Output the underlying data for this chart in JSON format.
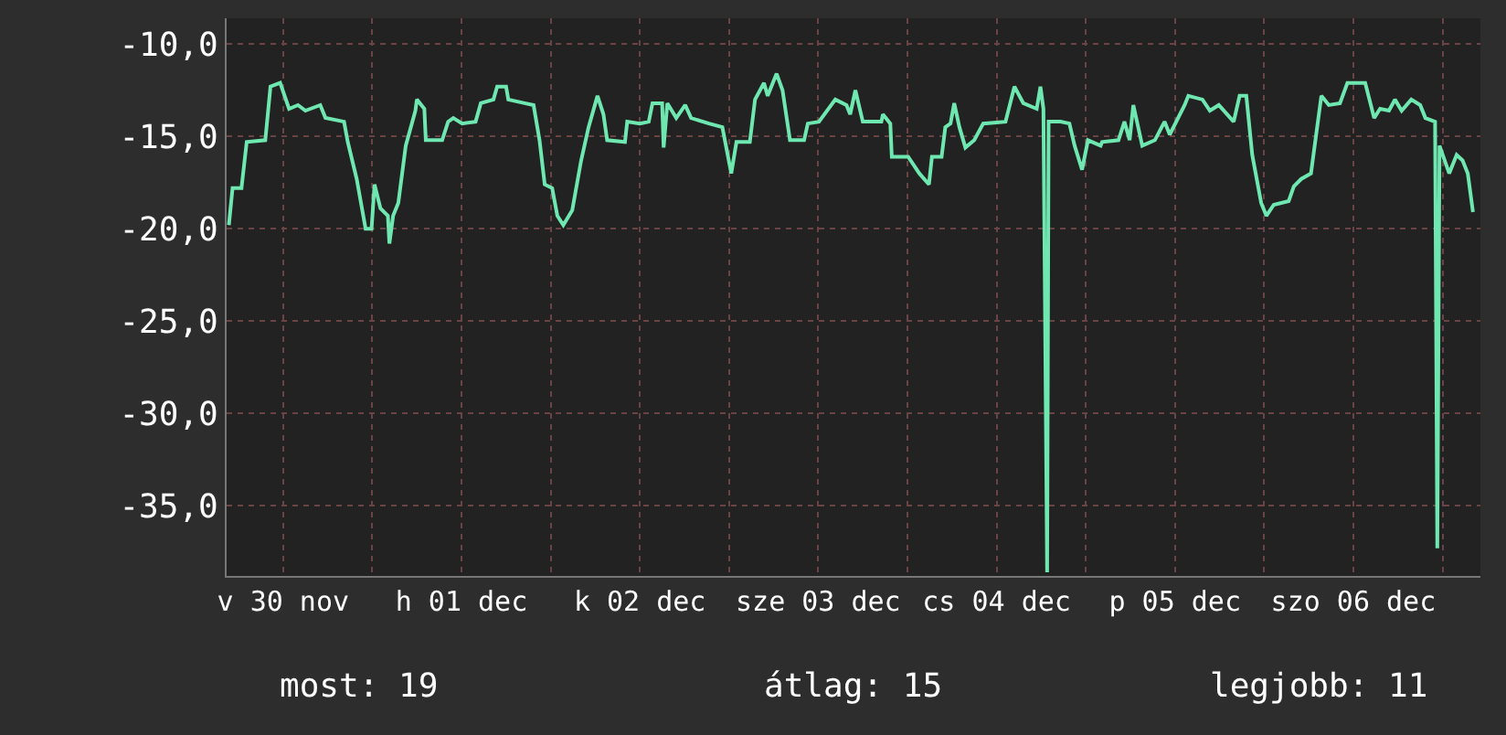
{
  "chart_data": {
    "type": "line",
    "x": [
      "--11-30T04:42",
      "--11-30T05:12",
      "--11-30T06:24",
      "--11-30T07:06",
      "--11-30T09:36",
      "--11-30T10:18",
      "--11-30T11:36",
      "--11-30T12:48",
      "--11-30T14:00",
      "--11-30T15:00",
      "--11-30T17:00",
      "--11-30T17:42",
      "--11-30T20:12",
      "--11-30T20:42",
      "--11-30T21:54",
      "--11-30T23:06",
      "--11-30T23:54",
      "--12-01T00:18",
      "--12-01T01:06",
      "--12-01T02:06",
      "--12-01T02:18",
      "--12-01T02:48",
      "--12-01T03:30",
      "--12-01T04:30",
      "--12-01T05:48",
      "--12-01T06:00",
      "--12-01T07:00",
      "--12-01T07:12",
      "--12-01T09:24",
      "--12-01T10:12",
      "--12-01T10:54",
      "--12-01T12:06",
      "--12-01T13:54",
      "--12-01T14:36",
      "--12-01T16:18",
      "--12-01T16:48",
      "--12-01T18:00",
      "--12-01T18:18",
      "--12-01T20:30",
      "--12-01T21:42",
      "--12-01T22:30",
      "--12-01T23:12",
      "--12-02T00:12",
      "--12-02T00:54",
      "--12-02T01:42",
      "--12-02T02:54",
      "--12-02T04:06",
      "--12-02T05:06",
      "--12-02T06:18",
      "--12-02T07:06",
      "--12-02T07:36",
      "--12-02T10:00",
      "--12-02T10:18",
      "--12-02T12:00",
      "--12-02T13:12",
      "--12-02T13:42",
      "--12-02T15:00",
      "--12-02T15:12",
      "--12-02T15:42",
      "--12-02T16:54",
      "--12-02T18:06",
      "--12-02T18:54",
      "--12-02T21:18",
      "--12-02T23:06",
      "--12-03T00:18",
      "--12-03T01:00",
      "--12-03T02:48",
      "--12-03T03:30",
      "--12-03T04:42",
      "--12-03T05:12",
      "--12-03T06:24",
      "--12-03T07:12",
      "--12-03T08:12",
      "--12-03T10:06",
      "--12-03T10:36",
      "--12-03T12:06",
      "--12-03T14:18",
      "--12-03T15:48",
      "--12-03T16:18",
      "--12-03T17:00",
      "--12-03T18:00",
      "--12-03T20:30",
      "--12-03T20:42",
      "--12-03T21:42",
      "--12-03T21:54",
      "--12-04T00:06",
      "--12-04T01:36",
      "--12-04T02:54",
      "--12-04T03:18",
      "--12-04T04:36",
      "--12-04T05:06",
      "--12-04T05:48",
      "--12-04T06:18",
      "--12-04T07:00",
      "--12-04T07:48",
      "--12-04T09:00",
      "--12-04T10:12",
      "--12-04T13:12",
      "--12-04T14:24",
      "--12-04T15:36",
      "--12-04T17:24",
      "--12-04T17:54",
      "--12-04T18:18",
      "--12-04T18:48",
      "--12-04T19:00",
      "--12-04T20:36",
      "--12-04T21:48",
      "--12-04T22:30",
      "--12-04T23:30",
      "--12-05T00:18",
      "--12-05T02:00",
      "--12-05T02:12",
      "--12-05T04:24",
      "--12-05T05:12",
      "--12-05T05:54",
      "--12-05T06:24",
      "--12-05T07:36",
      "--12-05T09:18",
      "--12-05T10:36",
      "--12-05T11:18",
      "--12-05T13:18",
      "--12-05T13:48",
      "--12-05T15:42",
      "--12-05T16:42",
      "--12-05T17:54",
      "--12-05T19:54",
      "--12-05T20:42",
      "--12-05T21:36",
      "--12-05T22:24",
      "--12-05T23:36",
      "--12-06T00:18",
      "--12-06T01:18",
      "--12-06T03:18",
      "--12-06T04:00",
      "--12-06T05:00",
      "--12-06T06:18",
      "--12-06T07:00",
      "--12-06T07:42",
      "--12-06T08:42",
      "--12-06T10:12",
      "--12-06T11:12",
      "--12-06T13:36",
      "--12-06T14:48",
      "--12-06T15:36",
      "--12-06T16:48",
      "--12-06T17:36",
      "--12-06T18:30",
      "--12-06T19:48",
      "--12-06T21:00",
      "--12-06T21:42",
      "--12-06T23:00",
      "--12-06T23:18",
      "--12-06T23:36",
      "--12-07T00:54",
      "--12-07T01:54",
      "--12-07T02:42",
      "--12-07T03:24",
      "--12-07T04:06"
    ],
    "series": [
      {
        "color": "#6ee8b0",
        "values": [
          -19.8,
          -17.8,
          -17.8,
          -15.3,
          -15.2,
          -12.3,
          -12.1,
          -13.5,
          -13.3,
          -13.6,
          -13.3,
          -14.0,
          -14.2,
          -15.3,
          -17.3,
          -20.0,
          -20.0,
          -17.6,
          -18.9,
          -19.3,
          -20.8,
          -19.3,
          -18.6,
          -15.5,
          -13.6,
          -13.0,
          -13.5,
          -15.2,
          -15.2,
          -14.2,
          -14.0,
          -14.3,
          -14.2,
          -13.2,
          -13.0,
          -12.3,
          -12.3,
          -13.0,
          -13.2,
          -13.3,
          -15.2,
          -17.6,
          -17.8,
          -19.3,
          -19.8,
          -19.0,
          -16.3,
          -14.5,
          -12.8,
          -13.8,
          -15.2,
          -15.3,
          -14.2,
          -14.3,
          -14.2,
          -13.2,
          -13.2,
          -15.6,
          -13.2,
          -14.0,
          -13.3,
          -14.0,
          -14.3,
          -14.5,
          -17.0,
          -15.3,
          -15.3,
          -13.0,
          -12.1,
          -12.8,
          -11.6,
          -12.5,
          -15.2,
          -15.2,
          -14.3,
          -14.2,
          -13.0,
          -13.3,
          -13.8,
          -12.5,
          -14.2,
          -14.2,
          -13.8,
          -14.3,
          -16.1,
          -16.1,
          -17.0,
          -17.6,
          -16.1,
          -16.1,
          -14.5,
          -14.3,
          -13.2,
          -14.5,
          -15.6,
          -15.2,
          -14.3,
          -14.2,
          -12.3,
          -13.2,
          -13.5,
          -12.3,
          -13.5,
          -38.6,
          -14.2,
          -14.2,
          -14.3,
          -15.5,
          -16.8,
          -15.2,
          -15.5,
          -15.3,
          -15.2,
          -14.2,
          -15.2,
          -13.3,
          -15.5,
          -15.2,
          -14.2,
          -14.9,
          -13.3,
          -12.8,
          -13.0,
          -13.6,
          -13.3,
          -14.2,
          -12.8,
          -12.8,
          -16.0,
          -18.6,
          -19.3,
          -18.7,
          -18.5,
          -17.7,
          -17.3,
          -17.0,
          -14.9,
          -12.8,
          -13.3,
          -13.2,
          -12.1,
          -12.1,
          -14.0,
          -13.5,
          -13.6,
          -13.0,
          -13.6,
          -13.0,
          -13.3,
          -14.0,
          -14.2,
          -37.3,
          -15.5,
          -17.0,
          -16.0,
          -16.3,
          -17.0,
          -19.1
        ]
      }
    ],
    "xlim": [
      "--11-30T04:24",
      "--12-07T05:06"
    ],
    "xticks": [
      {
        "value": "--11-30T12:00",
        "label": "v 30 nov"
      },
      {
        "value": "--12-01T00:00",
        "label": null
      },
      {
        "value": "--12-01T12:00",
        "label": "h 01 dec"
      },
      {
        "value": "--12-02T00:00",
        "label": null
      },
      {
        "value": "--12-02T12:00",
        "label": "k 02 dec"
      },
      {
        "value": "--12-03T00:00",
        "label": null
      },
      {
        "value": "--12-03T12:00",
        "label": "sze 03 dec"
      },
      {
        "value": "--12-04T00:00",
        "label": null
      },
      {
        "value": "--12-04T12:00",
        "label": "cs 04 dec"
      },
      {
        "value": "--12-05T00:00",
        "label": null
      },
      {
        "value": "--12-05T12:00",
        "label": "p 05 dec"
      },
      {
        "value": "--12-06T00:00",
        "label": null
      },
      {
        "value": "--12-06T12:00",
        "label": "szo 06 dec"
      },
      {
        "value": "--12-07T00:00",
        "label": null
      }
    ],
    "ylim": [
      -38.8,
      -8.6
    ],
    "yticks": [
      {
        "value": -10,
        "label": "-10,0"
      },
      {
        "value": -15,
        "label": "-15,0"
      },
      {
        "value": -20,
        "label": "-20,0"
      },
      {
        "value": -25,
        "label": "-25,0"
      },
      {
        "value": -30,
        "label": "-30,0"
      },
      {
        "value": -35,
        "label": "-35,0"
      }
    ],
    "grid": true,
    "marker": "none",
    "line_style": "solid",
    "annotations": [
      "most: 19",
      "átlag: 15",
      "legjobb: 11"
    ]
  }
}
